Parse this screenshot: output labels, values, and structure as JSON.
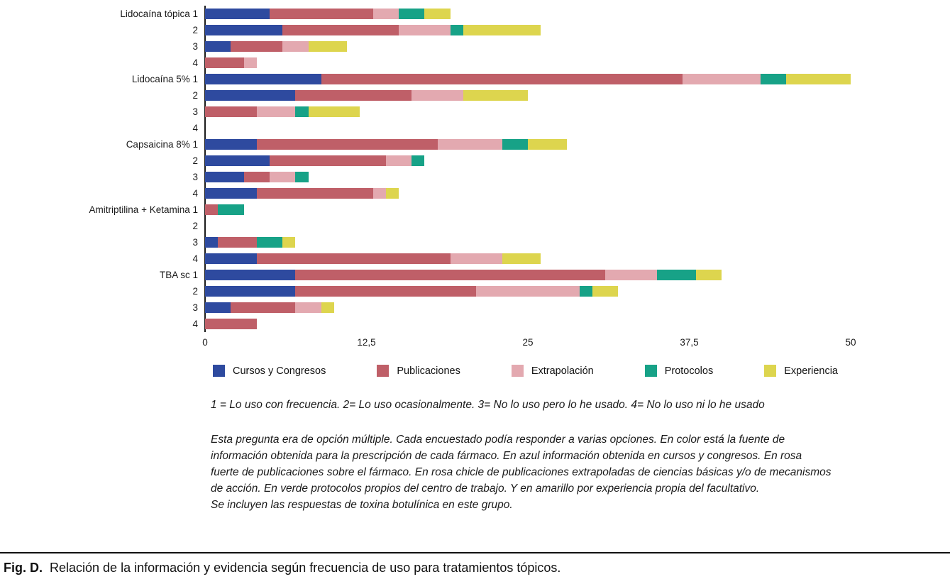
{
  "chart_data": {
    "type": "bar",
    "orientation": "horizontal",
    "stacked": true,
    "xlim": [
      0,
      50
    ],
    "x_tick_values": [
      0,
      12.5,
      25,
      37.5,
      50
    ],
    "x_tick_labels": [
      "0",
      "12,5",
      "25",
      "37,5",
      "50"
    ],
    "grid": false,
    "legend_position": "bottom",
    "series": [
      {
        "name": "Cursos y Congresos",
        "color": "#2e4a9f"
      },
      {
        "name": "Publicaciones",
        "color": "#bf5f68"
      },
      {
        "name": "Extrapolación",
        "color": "#e3a9b0"
      },
      {
        "name": "Protocolos",
        "color": "#17a287"
      },
      {
        "name": "Experiencia",
        "color": "#ddd54e"
      }
    ],
    "rows": [
      {
        "label": "Lidocaína tópica 1",
        "values": [
          5,
          8,
          2,
          2,
          2
        ]
      },
      {
        "label": "2",
        "values": [
          6,
          9,
          4,
          1,
          6
        ]
      },
      {
        "label": "3",
        "values": [
          2,
          4,
          2,
          0,
          3
        ]
      },
      {
        "label": "4",
        "values": [
          0,
          3,
          1,
          0,
          0
        ]
      },
      {
        "label": "Lidocaína 5% 1",
        "values": [
          9,
          28,
          6,
          2,
          5
        ]
      },
      {
        "label": "2",
        "values": [
          7,
          9,
          4,
          0,
          5
        ]
      },
      {
        "label": "3",
        "values": [
          0,
          4,
          3,
          1,
          4
        ]
      },
      {
        "label": "4",
        "values": [
          0,
          0,
          0,
          0,
          0
        ]
      },
      {
        "label": "Capsaicina 8% 1",
        "values": [
          4,
          14,
          5,
          2,
          3
        ]
      },
      {
        "label": "2",
        "values": [
          5,
          9,
          2,
          1,
          0
        ]
      },
      {
        "label": "3",
        "values": [
          3,
          2,
          2,
          1,
          0
        ]
      },
      {
        "label": "4",
        "values": [
          4,
          9,
          1,
          0,
          1
        ]
      },
      {
        "label": "Amitriptilina + Ketamina 1",
        "values": [
          0,
          1,
          0,
          2,
          0
        ]
      },
      {
        "label": "2",
        "values": [
          0,
          0,
          0,
          0,
          0
        ]
      },
      {
        "label": "3",
        "values": [
          1,
          3,
          0,
          2,
          1
        ]
      },
      {
        "label": "4",
        "values": [
          4,
          15,
          4,
          0,
          3
        ]
      },
      {
        "label": "TBA sc 1",
        "values": [
          7,
          24,
          4,
          3,
          2
        ]
      },
      {
        "label": "2",
        "values": [
          7,
          14,
          8,
          1,
          2
        ]
      },
      {
        "label": "3",
        "values": [
          2,
          5,
          2,
          0,
          1
        ]
      },
      {
        "label": "4",
        "values": [
          0,
          4,
          0,
          0,
          0
        ]
      }
    ]
  },
  "notes": {
    "key": "1 = Lo uso con frecuencia. 2= Lo uso ocasionalmente. 3= No lo uso pero lo he usado. 4= No lo uso ni lo he usado",
    "explanation": "Esta pregunta era de opción múltiple. Cada encuestado podía responder a varias opciones. En color está la fuente de información obtenida para la prescripción de cada fármaco. En azul información obtenida en cursos y congresos. En rosa fuerte de publicaciones sobre el fármaco. En rosa chicle de publicaciones extrapoladas de ciencias básicas y/o de mecanismos de acción. En verde protocolos propios del centro de trabajo. Y en amarillo por experiencia propia del facultativo.",
    "inclusion": "Se incluyen las respuestas de toxina botulínica en este grupo."
  },
  "caption": {
    "label": "Fig. D.",
    "text": "Relación de la información y evidencia según frecuencia de uso para tratamientos tópicos."
  }
}
